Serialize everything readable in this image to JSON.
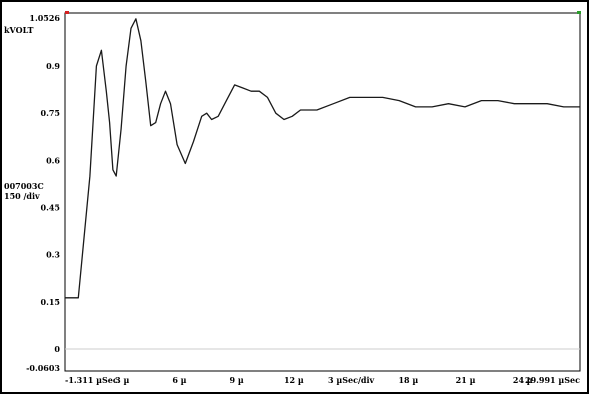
{
  "chart_data": {
    "type": "line",
    "series_label": "007003C",
    "scale_label": "150 /div",
    "y_unit": "kVOLT",
    "ylim": [
      -0.0603,
      1.0526
    ],
    "xlim": [
      -1.311,
      29.991
    ],
    "y_ticks": [
      "1.0526",
      "0.9",
      "0.75",
      "0.6",
      "0.45",
      "0.3",
      "0.15",
      "0",
      "-0.0603"
    ],
    "x_ticks": [
      "-1.311 µSec",
      "3 µ",
      "6 µ",
      "9 µ",
      "12 µ",
      "3 µSec/div",
      "18 µ",
      "21 µ",
      "24 µ",
      "29.991 µSec"
    ],
    "grid": false,
    "colors": {
      "trace": "#1a1a1a",
      "background": "#ffffff",
      "zero_line": "#cccccc",
      "marker_red": "#d62020",
      "marker_green": "#2a9d2a"
    },
    "series": [
      {
        "x": [
          -1.311,
          -0.5,
          0.2,
          0.6,
          0.9,
          1.2,
          1.4,
          1.6,
          1.8,
          2.1,
          2.4,
          2.7,
          3.0,
          3.3,
          3.6,
          3.9,
          4.2,
          4.5,
          4.8,
          5.1,
          5.5,
          6.0,
          6.5,
          7.0,
          7.3,
          7.6,
          8.0,
          8.5,
          9.0,
          9.5,
          10.0,
          10.5,
          11.0,
          11.5,
          12.0,
          12.5,
          13.0,
          14.0,
          15.0,
          16.0,
          17.0,
          18.0,
          19.0,
          20.0,
          21.0,
          22.0,
          23.0,
          24.0,
          25.0,
          26.0,
          27.0,
          28.0,
          29.0,
          29.991
        ],
        "y": [
          0.163,
          0.163,
          0.55,
          0.9,
          0.95,
          0.82,
          0.72,
          0.57,
          0.55,
          0.7,
          0.9,
          1.02,
          1.05,
          0.98,
          0.85,
          0.71,
          0.72,
          0.78,
          0.82,
          0.78,
          0.65,
          0.59,
          0.66,
          0.74,
          0.75,
          0.73,
          0.74,
          0.79,
          0.84,
          0.83,
          0.82,
          0.82,
          0.8,
          0.75,
          0.73,
          0.74,
          0.76,
          0.76,
          0.78,
          0.8,
          0.8,
          0.8,
          0.79,
          0.77,
          0.77,
          0.78,
          0.77,
          0.79,
          0.79,
          0.78,
          0.78,
          0.78,
          0.77,
          0.77
        ]
      }
    ]
  }
}
